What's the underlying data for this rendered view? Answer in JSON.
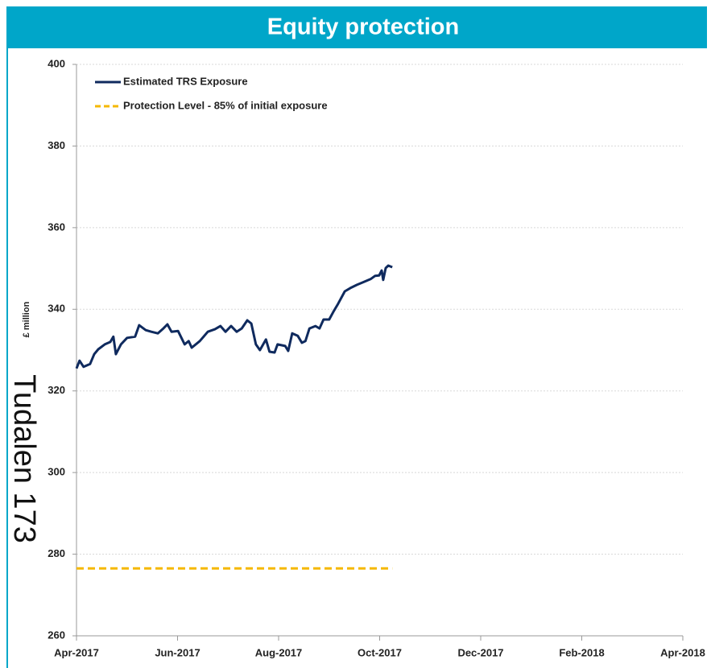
{
  "chart_data": {
    "type": "line",
    "title": "Equity protection",
    "ylabel": "£ million",
    "annotations": [
      "Tudalen 173"
    ],
    "xlim": [
      0,
      12
    ],
    "xticks": [
      {
        "value": 0,
        "label": "Apr-2017"
      },
      {
        "value": 2,
        "label": "Jun-2017"
      },
      {
        "value": 4,
        "label": "Aug-2017"
      },
      {
        "value": 6,
        "label": "Oct-2017"
      },
      {
        "value": 8,
        "label": "Dec-2017"
      },
      {
        "value": 10,
        "label": "Feb-2018"
      },
      {
        "value": 12,
        "label": "Apr-2018"
      }
    ],
    "ylim": [
      260,
      400
    ],
    "yticks": [
      260,
      280,
      300,
      320,
      340,
      360,
      380,
      400
    ],
    "grid": true,
    "legend": "upper left",
    "series": [
      {
        "name": "Estimated TRS Exposure",
        "color": "#0f2a5e",
        "dash": "solid",
        "x": [
          0.0,
          0.06,
          0.14,
          0.27,
          0.35,
          0.43,
          0.56,
          0.67,
          0.73,
          0.78,
          0.88,
          1.0,
          1.16,
          1.24,
          1.37,
          1.48,
          1.61,
          1.72,
          1.8,
          1.88,
          2.01,
          2.14,
          2.22,
          2.28,
          2.44,
          2.6,
          2.74,
          2.85,
          2.95,
          3.06,
          3.17,
          3.27,
          3.38,
          3.46,
          3.55,
          3.63,
          3.75,
          3.82,
          3.92,
          3.98,
          4.13,
          4.19,
          4.27,
          4.38,
          4.46,
          4.53,
          4.61,
          4.73,
          4.81,
          4.89,
          5.0,
          5.08,
          5.18,
          5.31,
          5.42,
          5.55,
          5.67,
          5.82,
          5.91,
          5.99,
          6.04,
          6.07,
          6.12,
          6.17,
          6.25
        ],
        "values": [
          325.5,
          327.4,
          325.9,
          326.6,
          329.0,
          330.2,
          331.4,
          332.0,
          333.3,
          329.0,
          331.4,
          333.0,
          333.3,
          336.1,
          334.9,
          334.5,
          334.1,
          335.3,
          336.3,
          334.5,
          334.7,
          331.4,
          332.2,
          330.6,
          332.2,
          334.5,
          335.1,
          335.9,
          334.5,
          335.9,
          334.5,
          335.3,
          337.3,
          336.5,
          331.4,
          330.0,
          332.6,
          329.6,
          329.4,
          331.4,
          331.0,
          329.8,
          334.1,
          333.5,
          331.8,
          332.2,
          335.3,
          335.9,
          335.3,
          337.5,
          337.5,
          339.3,
          341.4,
          344.4,
          345.2,
          346.0,
          346.6,
          347.4,
          348.2,
          348.3,
          349.5,
          347.2,
          350.1,
          350.7,
          350.3
        ]
      },
      {
        "name": "Protection Level - 85% of initial exposure",
        "color": "#f5b800",
        "dash": "dashed",
        "x": [
          0,
          6.25
        ],
        "values": [
          276.5,
          276.5
        ]
      }
    ]
  }
}
